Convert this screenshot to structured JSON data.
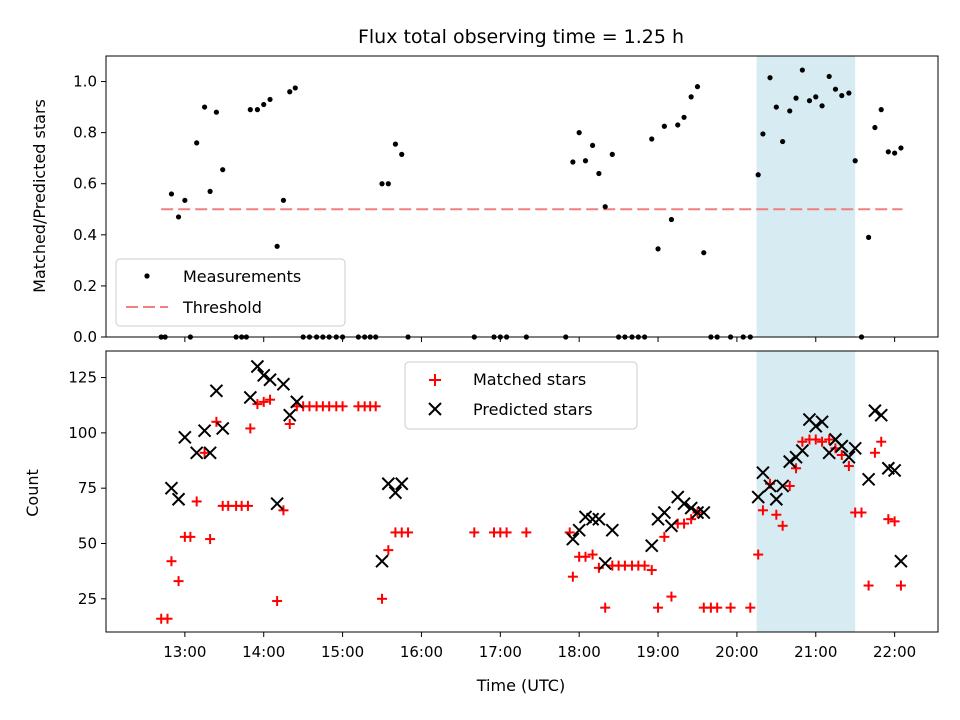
{
  "title": "Flux total observing time = 1.25 h",
  "chart_data": [
    {
      "type": "scatter",
      "ylabel": "Matched/Predicted stars",
      "ylim": [
        0,
        1.1
      ],
      "yticks": [
        "0.0",
        "0.2",
        "0.4",
        "0.6",
        "0.8",
        "1.0"
      ],
      "xlim_hours": [
        12.0,
        22.55
      ],
      "x_tick_hours": [
        13,
        14,
        15,
        16,
        17,
        18,
        19,
        20,
        21,
        22
      ],
      "x_tick_labels": [
        "13:00",
        "14:00",
        "15:00",
        "16:00",
        "17:00",
        "18:00",
        "19:00",
        "20:00",
        "21:00",
        "22:00"
      ],
      "shaded_region_hours": [
        20.25,
        21.5
      ],
      "threshold": {
        "name": "Threshold",
        "y": 0.5,
        "x_range_hours": [
          12.7,
          22.1
        ],
        "color": "#f08080"
      },
      "legend": {
        "placement": "lower-left",
        "entries": [
          "Measurements",
          "Threshold"
        ]
      },
      "series": [
        {
          "name": "Measurements",
          "color": "#000000",
          "marker": "dot",
          "points": [
            [
              12.7,
              0
            ],
            [
              12.75,
              0
            ],
            [
              12.83,
              0.56
            ],
            [
              12.92,
              0.47
            ],
            [
              13.0,
              0.535
            ],
            [
              13.07,
              0
            ],
            [
              13.15,
              0.76
            ],
            [
              13.25,
              0.9
            ],
            [
              13.32,
              0.57
            ],
            [
              13.4,
              0.88
            ],
            [
              13.48,
              0.655
            ],
            [
              13.65,
              0
            ],
            [
              13.72,
              0
            ],
            [
              13.78,
              0
            ],
            [
              13.83,
              0.89
            ],
            [
              13.92,
              0.89
            ],
            [
              14.0,
              0.91
            ],
            [
              14.08,
              0.93
            ],
            [
              14.17,
              0.355
            ],
            [
              14.25,
              0.535
            ],
            [
              14.33,
              0.96
            ],
            [
              14.4,
              0.975
            ],
            [
              14.5,
              0
            ],
            [
              14.58,
              0
            ],
            [
              14.67,
              0
            ],
            [
              14.75,
              0
            ],
            [
              14.83,
              0
            ],
            [
              14.92,
              0
            ],
            [
              15.0,
              0
            ],
            [
              15.2,
              0
            ],
            [
              15.28,
              0
            ],
            [
              15.35,
              0
            ],
            [
              15.42,
              0
            ],
            [
              15.5,
              0.6
            ],
            [
              15.58,
              0.6
            ],
            [
              15.67,
              0.755
            ],
            [
              15.75,
              0.715
            ],
            [
              15.83,
              0
            ],
            [
              16.67,
              0
            ],
            [
              16.92,
              0
            ],
            [
              17.0,
              0
            ],
            [
              17.08,
              0
            ],
            [
              17.33,
              0
            ],
            [
              17.83,
              0
            ],
            [
              17.92,
              0.685
            ],
            [
              18.0,
              0.8
            ],
            [
              18.08,
              0.69
            ],
            [
              18.17,
              0.75
            ],
            [
              18.25,
              0.64
            ],
            [
              18.33,
              0.51
            ],
            [
              18.42,
              0.715
            ],
            [
              18.5,
              0
            ],
            [
              18.58,
              0
            ],
            [
              18.67,
              0
            ],
            [
              18.75,
              0
            ],
            [
              18.83,
              0
            ],
            [
              18.92,
              0.775
            ],
            [
              19.0,
              0.345
            ],
            [
              19.08,
              0.825
            ],
            [
              19.17,
              0.46
            ],
            [
              19.25,
              0.83
            ],
            [
              19.33,
              0.86
            ],
            [
              19.42,
              0.94
            ],
            [
              19.5,
              0.98
            ],
            [
              19.58,
              0.33
            ],
            [
              19.67,
              0
            ],
            [
              19.75,
              0
            ],
            [
              19.92,
              0
            ],
            [
              20.08,
              0
            ],
            [
              20.17,
              0
            ],
            [
              20.27,
              0.635
            ],
            [
              20.33,
              0.795
            ],
            [
              20.42,
              1.015
            ],
            [
              20.5,
              0.9
            ],
            [
              20.58,
              0.765
            ],
            [
              20.67,
              0.885
            ],
            [
              20.75,
              0.935
            ],
            [
              20.83,
              1.045
            ],
            [
              20.92,
              0.925
            ],
            [
              21.0,
              0.94
            ],
            [
              21.08,
              0.905
            ],
            [
              21.17,
              1.02
            ],
            [
              21.25,
              0.97
            ],
            [
              21.33,
              0.945
            ],
            [
              21.42,
              0.955
            ],
            [
              21.5,
              0.69
            ],
            [
              21.58,
              0
            ],
            [
              21.67,
              0.39
            ],
            [
              21.75,
              0.82
            ],
            [
              21.83,
              0.89
            ],
            [
              21.92,
              0.725
            ],
            [
              22.0,
              0.72
            ],
            [
              22.08,
              0.74
            ]
          ]
        }
      ]
    },
    {
      "type": "scatter",
      "xlabel": "Time (UTC)",
      "ylabel": "Count",
      "ylim": [
        10,
        137
      ],
      "yticks": [
        "25",
        "50",
        "75",
        "100",
        "125"
      ],
      "xlim_hours": [
        12.0,
        22.55
      ],
      "x_tick_hours": [
        13,
        14,
        15,
        16,
        17,
        18,
        19,
        20,
        21,
        22
      ],
      "x_tick_labels": [
        "13:00",
        "14:00",
        "15:00",
        "16:00",
        "17:00",
        "18:00",
        "19:00",
        "20:00",
        "21:00",
        "22:00"
      ],
      "shaded_region_hours": [
        20.25,
        21.5
      ],
      "legend": {
        "placement": "top-center",
        "entries": [
          "Matched stars",
          "Predicted stars"
        ]
      },
      "series": [
        {
          "name": "Matched stars",
          "color": "#ff0000",
          "marker": "plus",
          "points": [
            [
              12.7,
              16
            ],
            [
              12.78,
              16
            ],
            [
              12.83,
              42
            ],
            [
              12.92,
              33
            ],
            [
              13.0,
              53
            ],
            [
              13.07,
              53
            ],
            [
              13.15,
              69
            ],
            [
              13.25,
              91
            ],
            [
              13.32,
              52
            ],
            [
              13.4,
              105
            ],
            [
              13.48,
              67
            ],
            [
              13.55,
              67
            ],
            [
              13.65,
              67
            ],
            [
              13.72,
              67
            ],
            [
              13.8,
              67
            ],
            [
              13.83,
              102
            ],
            [
              13.92,
              113
            ],
            [
              14.0,
              114
            ],
            [
              14.08,
              115
            ],
            [
              14.17,
              24
            ],
            [
              14.25,
              65
            ],
            [
              14.33,
              104
            ],
            [
              14.42,
              112
            ],
            [
              14.5,
              112
            ],
            [
              14.58,
              112
            ],
            [
              14.67,
              112
            ],
            [
              14.75,
              112
            ],
            [
              14.83,
              112
            ],
            [
              14.92,
              112
            ],
            [
              15.0,
              112
            ],
            [
              15.2,
              112
            ],
            [
              15.28,
              112
            ],
            [
              15.35,
              112
            ],
            [
              15.42,
              112
            ],
            [
              15.5,
              25
            ],
            [
              15.58,
              47
            ],
            [
              15.67,
              55
            ],
            [
              15.75,
              55
            ],
            [
              15.83,
              55
            ],
            [
              16.67,
              55
            ],
            [
              16.92,
              55
            ],
            [
              17.0,
              55
            ],
            [
              17.08,
              55
            ],
            [
              17.33,
              55
            ],
            [
              17.88,
              55
            ],
            [
              17.92,
              35
            ],
            [
              18.0,
              44
            ],
            [
              18.08,
              44
            ],
            [
              18.17,
              45
            ],
            [
              18.25,
              39
            ],
            [
              18.33,
              21
            ],
            [
              18.42,
              40
            ],
            [
              18.5,
              40
            ],
            [
              18.58,
              40
            ],
            [
              18.67,
              40
            ],
            [
              18.75,
              40
            ],
            [
              18.83,
              40
            ],
            [
              18.92,
              38
            ],
            [
              19.0,
              21
            ],
            [
              19.08,
              53
            ],
            [
              19.17,
              26
            ],
            [
              19.25,
              59
            ],
            [
              19.33,
              59
            ],
            [
              19.42,
              61
            ],
            [
              19.5,
              64
            ],
            [
              19.58,
              21
            ],
            [
              19.67,
              21
            ],
            [
              19.75,
              21
            ],
            [
              19.92,
              21
            ],
            [
              20.17,
              21
            ],
            [
              20.27,
              45
            ],
            [
              20.33,
              65
            ],
            [
              20.42,
              77
            ],
            [
              20.5,
              63
            ],
            [
              20.58,
              58
            ],
            [
              20.67,
              76
            ],
            [
              20.75,
              84
            ],
            [
              20.83,
              96
            ],
            [
              20.92,
              97
            ],
            [
              21.0,
              97
            ],
            [
              21.08,
              96
            ],
            [
              21.17,
              97
            ],
            [
              21.25,
              93
            ],
            [
              21.33,
              90
            ],
            [
              21.42,
              85
            ],
            [
              21.5,
              64
            ],
            [
              21.58,
              64
            ],
            [
              21.67,
              31
            ],
            [
              21.75,
              91
            ],
            [
              21.83,
              96
            ],
            [
              21.92,
              61
            ],
            [
              22.0,
              60
            ],
            [
              22.08,
              31
            ]
          ]
        },
        {
          "name": "Predicted stars",
          "color": "#000000",
          "marker": "x",
          "points": [
            [
              12.83,
              75
            ],
            [
              12.92,
              70
            ],
            [
              13.0,
              98
            ],
            [
              13.15,
              91
            ],
            [
              13.25,
              101
            ],
            [
              13.32,
              91
            ],
            [
              13.4,
              119
            ],
            [
              13.48,
              102
            ],
            [
              13.83,
              116
            ],
            [
              13.92,
              130
            ],
            [
              14.0,
              126
            ],
            [
              14.08,
              124
            ],
            [
              14.17,
              68
            ],
            [
              14.25,
              122
            ],
            [
              14.33,
              108
            ],
            [
              14.42,
              114
            ],
            [
              15.5,
              42
            ],
            [
              15.58,
              77
            ],
            [
              15.67,
              73
            ],
            [
              15.75,
              77
            ],
            [
              17.92,
              52
            ],
            [
              18.0,
              56
            ],
            [
              18.08,
              62
            ],
            [
              18.17,
              61
            ],
            [
              18.25,
              61
            ],
            [
              18.33,
              41
            ],
            [
              18.42,
              56
            ],
            [
              18.92,
              49
            ],
            [
              19.0,
              61
            ],
            [
              19.08,
              64
            ],
            [
              19.17,
              58
            ],
            [
              19.25,
              71
            ],
            [
              19.33,
              68
            ],
            [
              19.42,
              66
            ],
            [
              19.5,
              64
            ],
            [
              19.58,
              64
            ],
            [
              20.27,
              71
            ],
            [
              20.33,
              82
            ],
            [
              20.42,
              76
            ],
            [
              20.5,
              70
            ],
            [
              20.58,
              76
            ],
            [
              20.67,
              87
            ],
            [
              20.75,
              89
            ],
            [
              20.83,
              92
            ],
            [
              20.92,
              106
            ],
            [
              21.0,
              103
            ],
            [
              21.08,
              105
            ],
            [
              21.17,
              91
            ],
            [
              21.25,
              97
            ],
            [
              21.33,
              94
            ],
            [
              21.42,
              89
            ],
            [
              21.5,
              93
            ],
            [
              21.67,
              79
            ],
            [
              21.75,
              110
            ],
            [
              21.83,
              108
            ],
            [
              21.92,
              84
            ],
            [
              22.0,
              83
            ],
            [
              22.08,
              42
            ]
          ]
        }
      ]
    }
  ]
}
